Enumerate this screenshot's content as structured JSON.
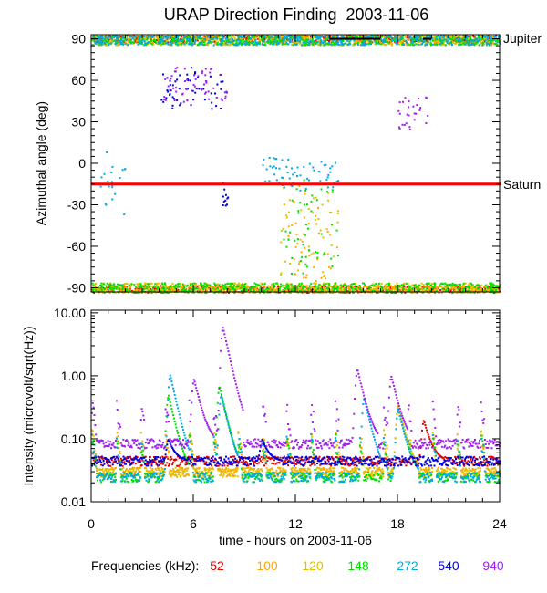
{
  "chart_data": [
    {
      "type": "scatter",
      "title": "URAP Direction Finding  2003-11-06",
      "xlabel": "",
      "ylabel": "Azimuthal angle (deg)",
      "xlim": [
        0,
        24
      ],
      "ylim": [
        -93,
        93
      ],
      "yticks": [
        90,
        60,
        30,
        0,
        -30,
        -60,
        -90
      ],
      "reference_lines": [
        {
          "label": "Jupiter",
          "y": 90,
          "color": "#000000"
        },
        {
          "label": "Saturn",
          "y": -15,
          "color": "#ff0000"
        }
      ],
      "description_series": [
        {
          "name": "52",
          "clusters": [
            [
              0,
              24,
              88,
              93
            ],
            [
              0,
              24,
              -93,
              -88
            ]
          ]
        },
        {
          "name": "100",
          "clusters": [
            [
              0,
              24,
              86,
              93
            ],
            [
              0,
              24,
              -93,
              -88
            ],
            [
              11.5,
              14,
              -85,
              -20
            ]
          ]
        },
        {
          "name": "120",
          "clusters": [
            [
              0,
              24,
              86,
              93
            ],
            [
              0,
              24,
              -93,
              -86
            ],
            [
              11,
              14.5,
              -88,
              -15
            ]
          ]
        },
        {
          "name": "148",
          "clusters": [
            [
              0,
              24,
              86,
              93
            ],
            [
              0,
              24,
              -93,
              -86
            ],
            [
              11,
              14.5,
              -80,
              -10
            ]
          ]
        },
        {
          "name": "272",
          "clusters": [
            [
              0,
              24,
              86,
              93
            ],
            [
              0.5,
              2,
              -40,
              10
            ],
            [
              10,
              14.5,
              -20,
              5
            ]
          ]
        },
        {
          "name": "540",
          "clusters": [
            [
              4,
              8,
              40,
              70
            ],
            [
              7.5,
              8,
              -30,
              -10
            ]
          ]
        },
        {
          "name": "940",
          "clusters": [
            [
              4,
              8,
              45,
              70
            ],
            [
              18,
              20,
              25,
              50
            ]
          ]
        }
      ]
    },
    {
      "type": "line",
      "title": "",
      "xlabel": "time - hours on 2003-11-06",
      "ylabel": "Intensity (microvolt/sqrt(Hz))",
      "xlim": [
        0,
        24
      ],
      "yscale": "log",
      "ylim": [
        0.01,
        11
      ],
      "xticks": [
        "0",
        "6",
        "12",
        "18",
        "24"
      ],
      "yticks": [
        "10.00",
        "1.00",
        "0.10",
        "0.01"
      ],
      "series": [
        {
          "name": "52",
          "baseline": 0.045,
          "peaks": [
            [
              19.5,
              0.2
            ]
          ]
        },
        {
          "name": "100",
          "baseline": 0.03,
          "peaks": [
            [
              18.0,
              0.35
            ]
          ]
        },
        {
          "name": "120",
          "baseline": 0.03,
          "peaks": [
            [
              18.0,
              0.35
            ]
          ]
        },
        {
          "name": "148",
          "baseline": 0.025,
          "peaks": [
            [
              4.5,
              0.5
            ],
            [
              7.5,
              0.7
            ],
            [
              18.0,
              0.3
            ]
          ]
        },
        {
          "name": "272",
          "baseline": 0.025,
          "peaks": [
            [
              4.6,
              1.05
            ],
            [
              7.6,
              0.5
            ],
            [
              16.0,
              0.45
            ],
            [
              18.0,
              0.3
            ]
          ]
        },
        {
          "name": "540",
          "baseline": 0.045,
          "peaks": [
            [
              4.5,
              0.1
            ],
            [
              10.0,
              0.1
            ]
          ]
        },
        {
          "name": "940",
          "baseline": 0.085,
          "peaks": [
            [
              7.7,
              6.0
            ],
            [
              6.0,
              0.9
            ],
            [
              15.6,
              1.3
            ],
            [
              17.6,
              1.0
            ]
          ]
        }
      ]
    }
  ],
  "legend": {
    "label": "Frequencies (kHz):",
    "items": [
      {
        "name": "52",
        "color": "#e00000"
      },
      {
        "name": "100",
        "color": "#ffa500"
      },
      {
        "name": "120",
        "color": "#e0c000"
      },
      {
        "name": "148",
        "color": "#00e000"
      },
      {
        "name": "272",
        "color": "#00a8e8"
      },
      {
        "name": "540",
        "color": "#0000e0"
      },
      {
        "name": "940",
        "color": "#a020f0"
      }
    ]
  }
}
